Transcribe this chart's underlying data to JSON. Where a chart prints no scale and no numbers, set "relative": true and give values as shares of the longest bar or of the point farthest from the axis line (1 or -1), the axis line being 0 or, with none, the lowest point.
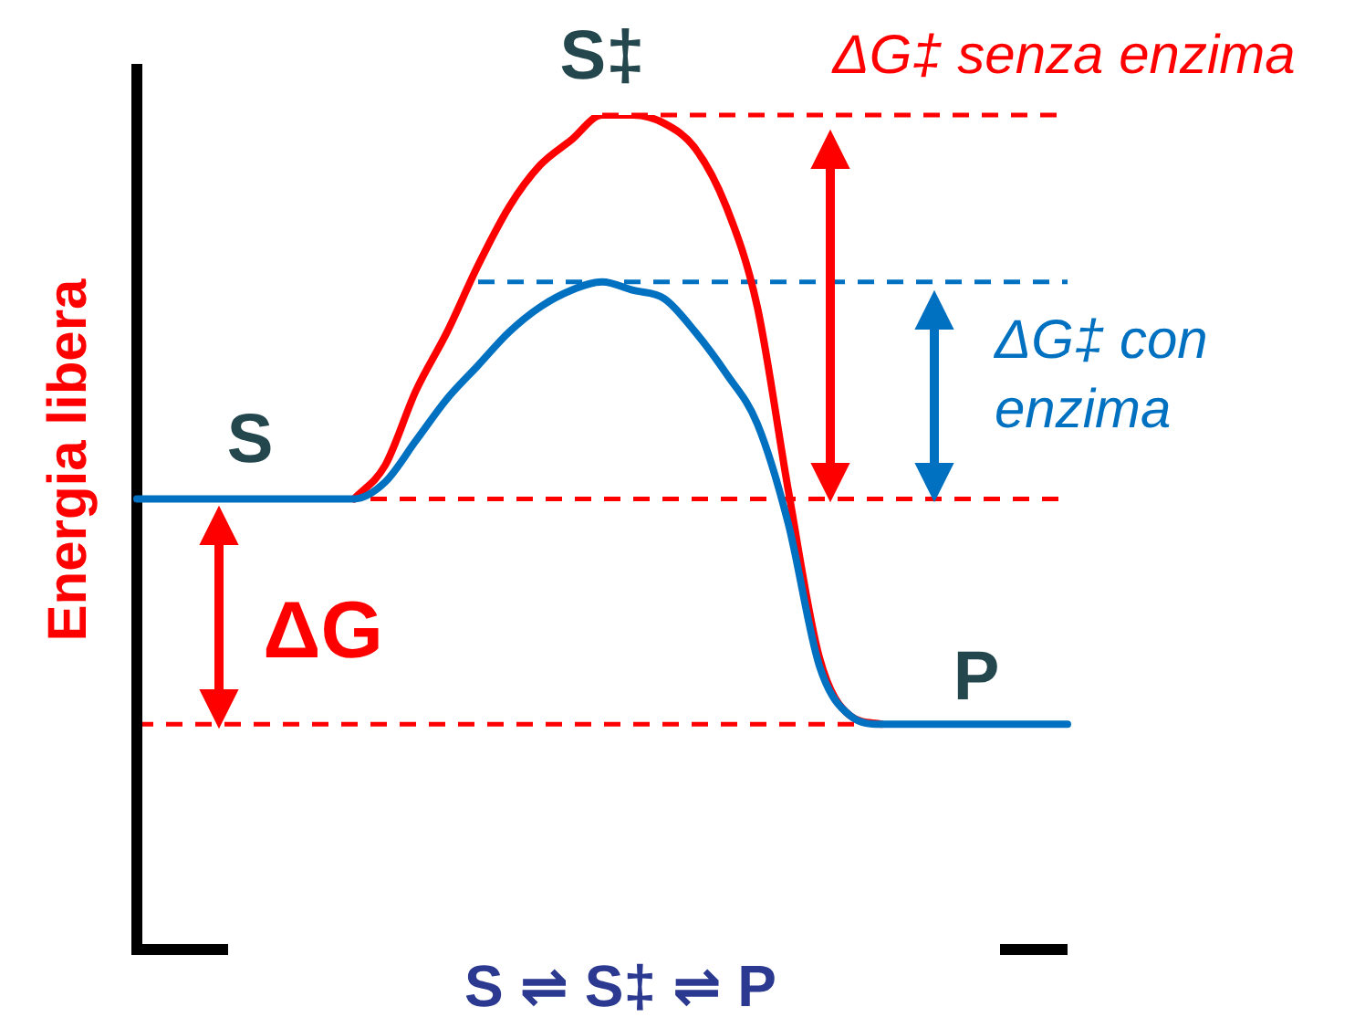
{
  "chart_data": {
    "type": "line",
    "relative": true,
    "ylabel": "Energia libera",
    "categories": [
      null,
      null,
      null,
      null,
      null,
      null,
      null,
      null,
      null,
      null,
      null,
      null,
      null,
      null,
      null,
      null,
      null,
      null,
      null,
      null,
      null,
      null,
      null,
      null,
      null,
      null,
      null,
      null,
      null,
      null,
      null
    ],
    "series": [
      {
        "color": "#ff0000",
        "values": [
          null,
          null,
          null,
          null,
          null,
          null,
          null,
          0.54,
          0.58,
          0.67,
          0.74,
          0.82,
          0.89,
          0.94,
          0.97,
          1.0,
          1.0,
          0.99,
          0.96,
          0.89,
          0.77,
          0.55,
          0.35,
          0.28,
          0.27,
          null,
          null,
          null,
          null,
          null,
          null
        ]
      },
      {
        "color": "#0070c0",
        "values": [
          0.54,
          0.54,
          0.54,
          0.54,
          0.54,
          0.54,
          0.54,
          0.54,
          0.56,
          0.61,
          0.66,
          0.7,
          0.74,
          0.77,
          0.79,
          0.8,
          0.79,
          0.78,
          0.74,
          0.69,
          0.63,
          0.51,
          0.34,
          0.28,
          0.27,
          0.27,
          0.27,
          0.27,
          0.27,
          0.27,
          0.27
        ]
      }
    ],
    "ref_lines": [
      {
        "axis": "y",
        "value": 1,
        "color": "#ff0000",
        "line_style": "dashed"
      },
      {
        "axis": "y",
        "value": 0.8,
        "color": "#0070c0",
        "line_style": "dashed"
      },
      {
        "axis": "y",
        "value": 0.54,
        "color": "#ff0000",
        "line_style": "dashed"
      },
      {
        "axis": "y",
        "value": 0.27,
        "color": "#ff0000",
        "line_style": "dashed"
      }
    ],
    "annotations": [
      "S",
      "S‡",
      "P",
      "ΔG‡ senza enzima",
      "ΔG‡ con enzima",
      "ΔG",
      "S ⇌ S‡ ⇌ P"
    ],
    "legend": false,
    "marker": "none",
    "line_style": "solid"
  }
}
